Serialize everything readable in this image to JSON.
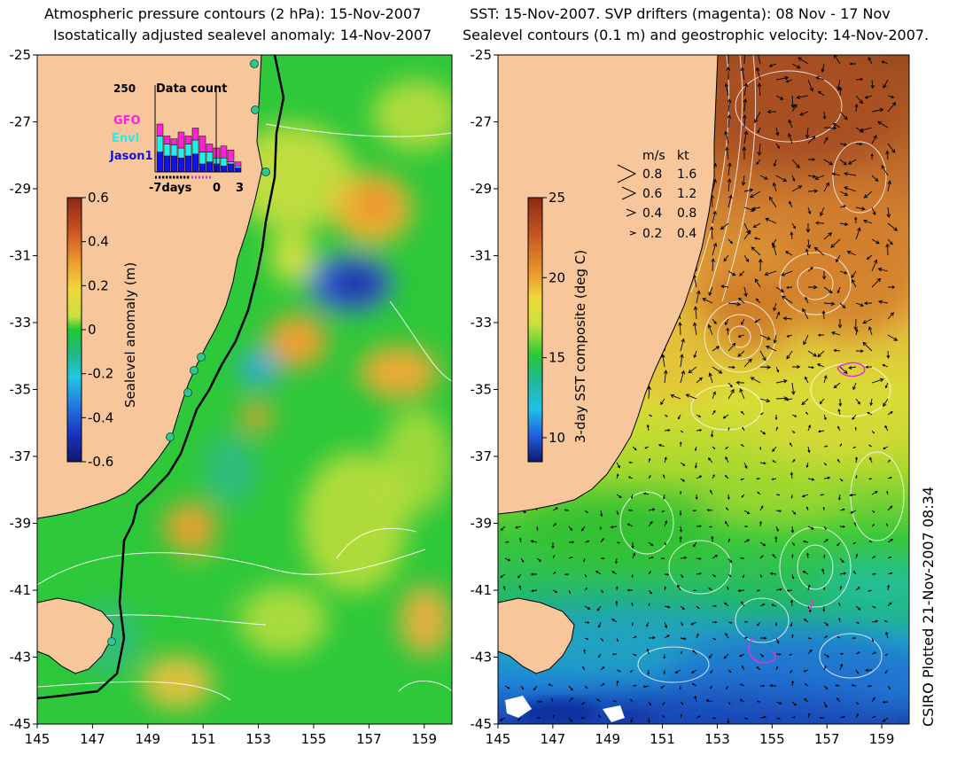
{
  "left_panel": {
    "title_line1": "Atmospheric pressure contours (2 hPa): 15-Nov-2007",
    "title_line2": "Isostatically adjusted sealevel anomaly: 14-Nov-2007",
    "lat_ticks": [
      "-25",
      "-27",
      "-29",
      "-31",
      "-33",
      "-35",
      "-37",
      "-39",
      "-41",
      "-43",
      "-45"
    ],
    "lon_ticks": [
      "145",
      "147",
      "149",
      "151",
      "153",
      "155",
      "157",
      "159"
    ],
    "colorbar": {
      "label": "Sealevel anomaly (m)",
      "ticks": [
        "0.6",
        "0.4",
        "0.2",
        "0",
        "-0.2",
        "-0.4",
        "-0.6"
      ],
      "range": [
        -0.6,
        0.6
      ]
    },
    "inset": {
      "title": "Data count",
      "ymax_label": "250",
      "x_labels": [
        "-7days",
        "0",
        "3"
      ],
      "legend": [
        {
          "name": "GFO",
          "color": "#ff22dd"
        },
        {
          "name": "Envi",
          "color": "#22eeee"
        },
        {
          "name": "Jason1",
          "color": "#1111ee"
        }
      ]
    }
  },
  "right_panel": {
    "title_line1": "SST: 15-Nov-2007. SVP drifters (magenta): 08 Nov - 17 Nov",
    "title_line2": "Sealevel contours (0.1 m) and geostrophic velocity: 14-Nov-2007.",
    "lat_ticks": [
      "-25",
      "-27",
      "-29",
      "-31",
      "-33",
      "-35",
      "-37",
      "-39",
      "-41",
      "-43",
      "-45"
    ],
    "lon_ticks": [
      "145",
      "147",
      "149",
      "151",
      "153",
      "155",
      "157",
      "159"
    ],
    "colorbar": {
      "label": "3-day SST composite (deg C)",
      "ticks": [
        "25",
        "20",
        "15",
        "10"
      ],
      "range": [
        8.5,
        25
      ]
    },
    "velocity_legend": {
      "header_ms": "m/s",
      "header_kt": "kt",
      "rows": [
        {
          "ms": "0.8",
          "kt": "1.6"
        },
        {
          "ms": "0.6",
          "kt": "1.2"
        },
        {
          "ms": "0.4",
          "kt": "0.8"
        },
        {
          "ms": "0.2",
          "kt": "0.4"
        }
      ]
    }
  },
  "credit": "CSIRO Plotted 21-Nov-2007 08:34",
  "colors": {
    "land": "#f7c79b",
    "coastline": "#000000",
    "contour": "#ffffff",
    "drifter": "#dd33dd"
  }
}
